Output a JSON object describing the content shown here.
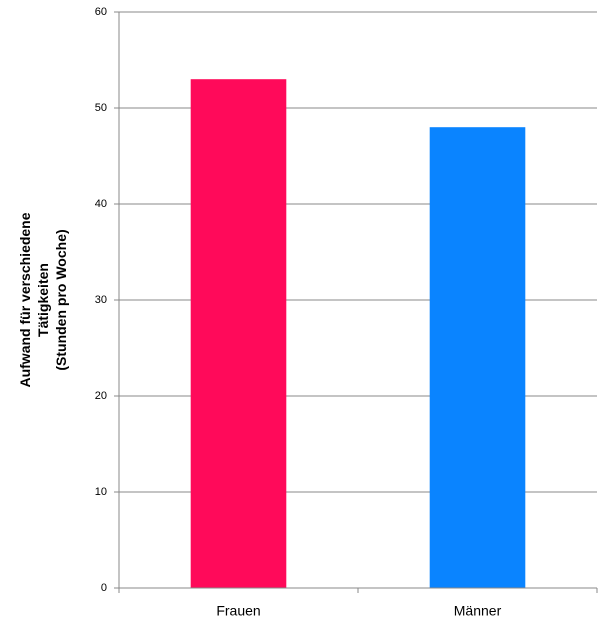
{
  "chart_data": {
    "type": "bar",
    "ylabel": [
      "Aufwand für verschiedene",
      "Tätigkeiten",
      "(Stunden pro Woche)"
    ],
    "categories": [
      "Frauen",
      "Männer"
    ],
    "values": [
      53,
      48
    ],
    "colors": [
      "#ff0a5a",
      "#0a84ff"
    ],
    "ylim": [
      0,
      60
    ],
    "yticks": [
      0,
      10,
      20,
      30,
      40,
      50,
      60
    ],
    "grid": true
  }
}
